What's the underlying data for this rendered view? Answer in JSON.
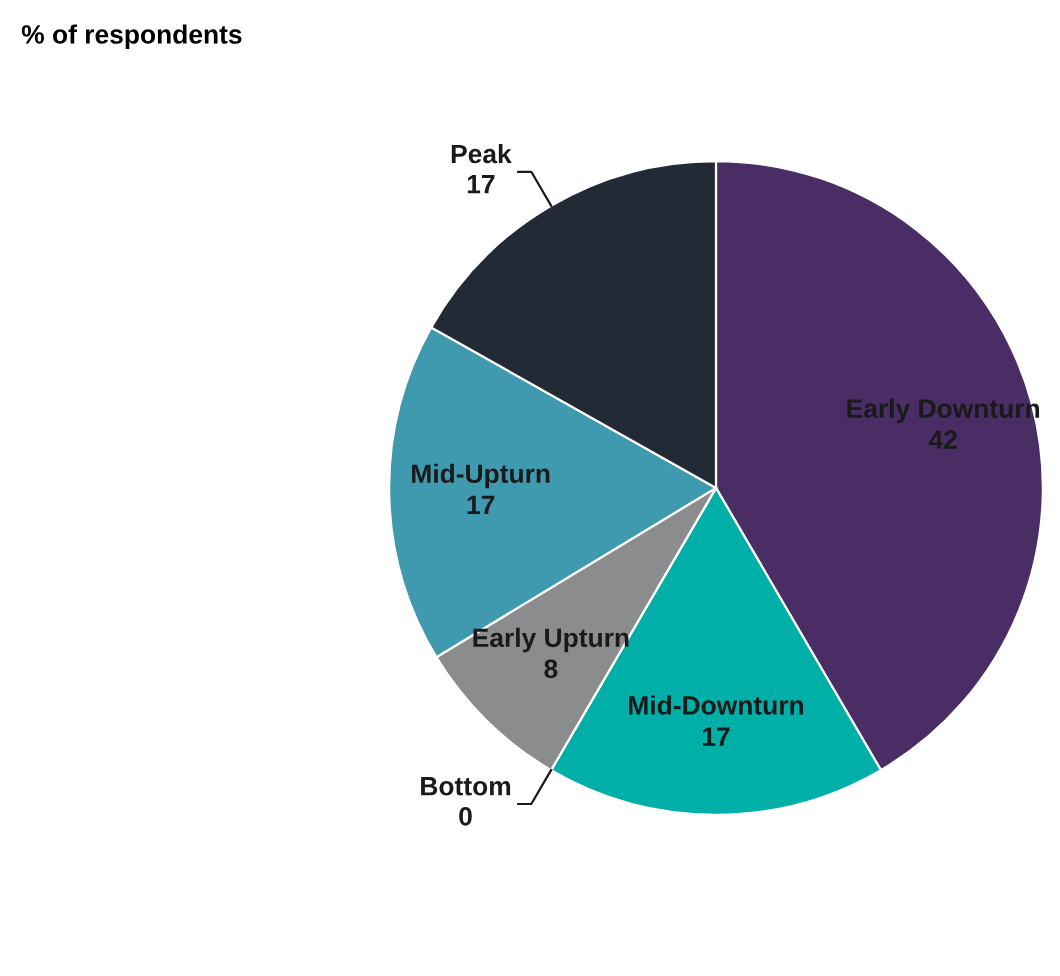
{
  "chart_data": {
    "type": "pie",
    "title": "% of respondents",
    "categories": [
      "Early Downturn",
      "Mid-Downturn",
      "Bottom",
      "Early Upturn",
      "Mid-Upturn",
      "Peak"
    ],
    "values": [
      42,
      17,
      0,
      8,
      17,
      17
    ],
    "colors": [
      "#4b2d66",
      "#00b0a8",
      "#1f1f1f",
      "#8a8c8e",
      "#3f9ab0",
      "#222a36"
    ],
    "value_labels": [
      "42",
      "17",
      "0",
      "8",
      "17",
      "17"
    ]
  }
}
